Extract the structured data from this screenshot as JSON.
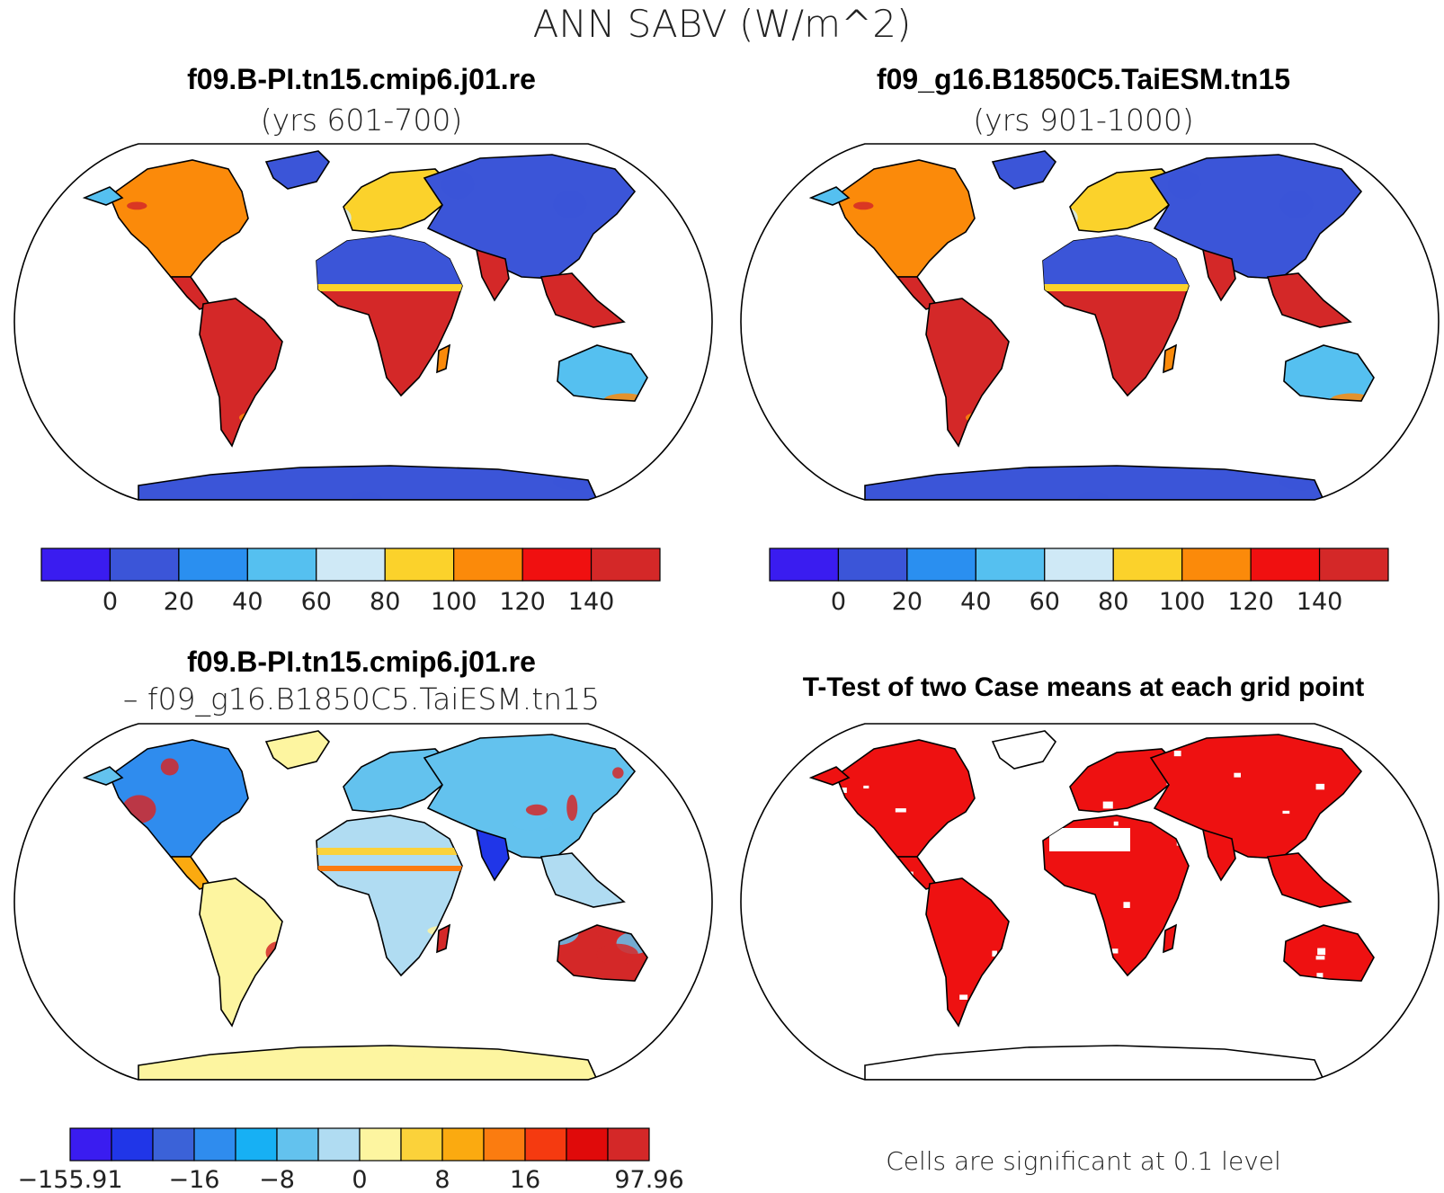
{
  "main_title": "ANN SABV (W/m^2)",
  "panels": {
    "top_left": {
      "title": "f09.B-PI.tn15.cmip6.j01.re",
      "subtitle": "(yrs 601-700)"
    },
    "top_right": {
      "title": "f09_g16.B1850C5.TaiESM.tn15",
      "subtitle": "(yrs 901-1000)"
    },
    "bottom_left": {
      "title": "f09.B-PI.tn15.cmip6.j01.re",
      "subtitle": "– f09_g16.B1850C5.TaiESM.tn15"
    },
    "bottom_right": {
      "title": "T-Test of two Case means at each grid point",
      "note": "Cells are significant at 0.1 level"
    }
  },
  "colorbar_abs": {
    "colors": [
      "#3a1cf0",
      "#3b55d8",
      "#2a8ff0",
      "#55c0f0",
      "#cfe9f6",
      "#fbd22b",
      "#fb8a0a",
      "#f01010",
      "#d42828"
    ],
    "labels": [
      "0",
      "20",
      "40",
      "60",
      "80",
      "100",
      "120",
      "140"
    ]
  },
  "colorbar_diff": {
    "colors": [
      "#3a1cf0",
      "#2036e8",
      "#3b62d8",
      "#2f8cee",
      "#17b0f4",
      "#63c2ee",
      "#b0dcf2",
      "#fdf5a0",
      "#fbd23a",
      "#fbaa10",
      "#fb7c10",
      "#f53a10",
      "#e00a0a",
      "#d42828"
    ],
    "labels": [
      "−155.91",
      "−16",
      "−8",
      "0",
      "8",
      "16",
      "97.96"
    ]
  },
  "map_colors": {
    "blue": "#3b55d8",
    "lightblue": "#55c0f0",
    "red": "#d42828",
    "orange": "#fb8a0a",
    "yellow": "#fbd22b",
    "paleyellow": "#fdf5a0",
    "sig": "#ee1111"
  }
}
